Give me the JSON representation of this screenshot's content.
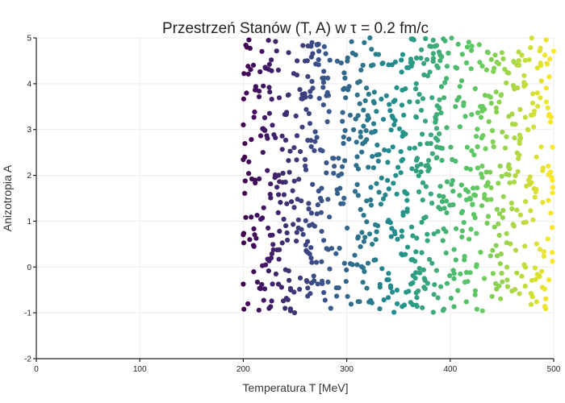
{
  "chart_data": {
    "type": "scatter",
    "title": "Przestrzeń Stanów (T, A) w τ = 0.2 fm/c",
    "xlabel": "Temperatura T [MeV]",
    "ylabel": "Anizotropia A",
    "xlim": [
      0,
      500
    ],
    "ylim": [
      -2,
      5
    ],
    "xticks": [
      "0",
      "100",
      "200",
      "300",
      "400",
      "500"
    ],
    "yticks": [
      "-2",
      "-1",
      "0",
      "1",
      "2",
      "3",
      "4",
      "5"
    ],
    "grid": true,
    "legend": "none",
    "colorscale": "viridis",
    "colorscale_stops": [
      "#440154",
      "#3b528b",
      "#21918c",
      "#5ec962",
      "#fde725"
    ],
    "color_by": "x",
    "x_range_observed": [
      200,
      500
    ],
    "y_range_observed": [
      -1,
      5
    ],
    "num_points_approx": 1000
  }
}
